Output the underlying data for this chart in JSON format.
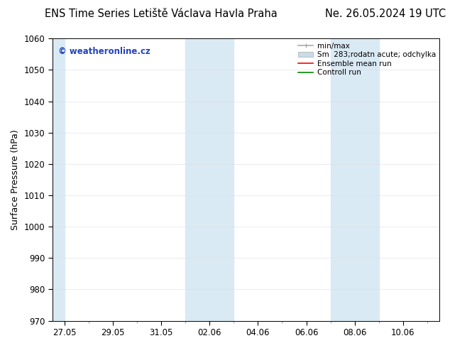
{
  "title": "ENS Time Series Letiště Václava Havla Praha",
  "title_right": "Ne. 26.05.2024 19 UTC",
  "ylabel": "Surface Pressure (hPa)",
  "ylim": [
    970,
    1060
  ],
  "yticks": [
    970,
    980,
    990,
    1000,
    1010,
    1020,
    1030,
    1040,
    1050,
    1060
  ],
  "xtick_labels": [
    "27.05",
    "29.05",
    "31.05",
    "02.06",
    "04.06",
    "06.06",
    "08.06",
    "10.06"
  ],
  "xtick_positions": [
    0,
    2,
    4,
    6,
    8,
    10,
    12,
    14
  ],
  "xlim": [
    -0.5,
    15.5
  ],
  "shaded_bands": [
    {
      "start": -0.5,
      "end": 0.0
    },
    {
      "start": 5.0,
      "end": 7.0
    },
    {
      "start": 11.0,
      "end": 13.0
    }
  ],
  "shade_color": "#daeaf5",
  "background_color": "#ffffff",
  "watermark_text": "© weatheronline.cz",
  "watermark_color": "#2244bb",
  "tick_color": "#000000",
  "spine_color": "#000000",
  "font_size_title": 10.5,
  "font_size_legend": 7.5,
  "font_size_ylabel": 9,
  "font_size_ticks": 8.5,
  "legend_min_max_color": "#aaaaaa",
  "legend_shade_color": "#c8dce8",
  "legend_mean_color": "#ff0000",
  "legend_ctrl_color": "#008800",
  "legend_label_1": "min/max",
  "legend_label_2": "Sm  283;rodatn acute; odchylka",
  "legend_label_3": "Ensemble mean run",
  "legend_label_4": "Controll run"
}
